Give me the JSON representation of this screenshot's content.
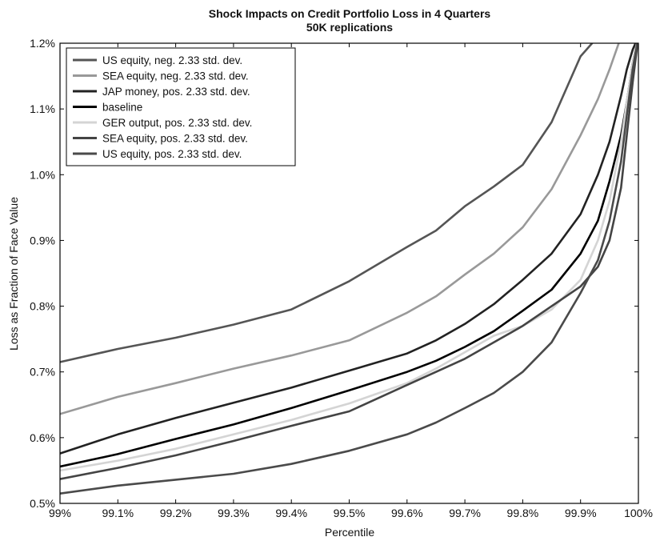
{
  "chart_data": {
    "type": "line",
    "title": "Shock Impacts on Credit Portfolio Loss in 4 Quarters",
    "subtitle": "50K replications",
    "xlabel": "Percentile",
    "ylabel": "Loss as Fraction of Face Value",
    "xlim": [
      99.0,
      100.0
    ],
    "ylim": [
      0.5,
      1.2
    ],
    "x_tick_values": [
      99.0,
      99.1,
      99.2,
      99.3,
      99.4,
      99.5,
      99.6,
      99.7,
      99.8,
      99.9,
      100.0
    ],
    "x_tick_labels": [
      "99%",
      "99.1%",
      "99.2%",
      "99.3%",
      "99.4%",
      "99.5%",
      "99.6%",
      "99.7%",
      "99.8%",
      "99.9%",
      "100%"
    ],
    "y_tick_values": [
      0.5,
      0.6,
      0.7,
      0.8,
      0.9,
      1.0,
      1.1,
      1.2
    ],
    "y_tick_labels": [
      "0.5%",
      "0.6%",
      "0.7%",
      "0.8%",
      "0.9%",
      "1.0%",
      "1.1%",
      "1.2%"
    ],
    "grid": false,
    "legend_position": "top-left",
    "x": [
      99.0,
      99.1,
      99.2,
      99.3,
      99.4,
      99.5,
      99.6,
      99.65,
      99.7,
      99.75,
      99.8,
      99.85,
      99.9,
      99.93,
      99.95,
      99.97,
      99.98,
      99.99,
      100.0
    ],
    "series": [
      {
        "name": "US equity, neg. 2.33 std. dev.",
        "color": "#555555",
        "width": 2.6,
        "values": [
          0.715,
          0.735,
          0.752,
          0.772,
          0.795,
          0.838,
          0.89,
          0.915,
          0.952,
          0.982,
          1.015,
          1.08,
          1.18,
          1.21,
          1.21,
          1.21,
          1.21,
          1.21,
          1.21
        ]
      },
      {
        "name": "SEA equity, neg. 2.33 std. dev.",
        "color": "#999999",
        "width": 2.6,
        "values": [
          0.636,
          0.662,
          0.683,
          0.705,
          0.725,
          0.748,
          0.79,
          0.815,
          0.848,
          0.88,
          0.92,
          0.978,
          1.06,
          1.115,
          1.16,
          1.21,
          1.21,
          1.21,
          1.21
        ]
      },
      {
        "name": "JAP money, pos. 2.33 std. dev.",
        "color": "#222222",
        "width": 2.6,
        "values": [
          0.576,
          0.605,
          0.63,
          0.653,
          0.676,
          0.702,
          0.728,
          0.748,
          0.773,
          0.803,
          0.84,
          0.88,
          0.94,
          1.0,
          1.05,
          1.12,
          1.16,
          1.19,
          1.21
        ]
      },
      {
        "name": "baseline",
        "color": "#000000",
        "width": 2.6,
        "values": [
          0.556,
          0.575,
          0.598,
          0.62,
          0.645,
          0.672,
          0.7,
          0.717,
          0.738,
          0.762,
          0.793,
          0.825,
          0.88,
          0.93,
          0.99,
          1.06,
          1.11,
          1.17,
          1.21
        ]
      },
      {
        "name": "GER output, pos. 2.33 std. dev.",
        "color": "#d4d4d4",
        "width": 2.6,
        "values": [
          0.55,
          0.565,
          0.583,
          0.605,
          0.627,
          0.652,
          0.683,
          0.705,
          0.73,
          0.755,
          0.77,
          0.795,
          0.84,
          0.9,
          0.96,
          1.05,
          1.11,
          1.17,
          1.21
        ]
      },
      {
        "name": "SEA equity, pos. 2.33 std. dev.",
        "color": "#444444",
        "width": 2.6,
        "values": [
          0.537,
          0.554,
          0.573,
          0.595,
          0.618,
          0.64,
          0.68,
          0.7,
          0.72,
          0.745,
          0.77,
          0.8,
          0.83,
          0.86,
          0.9,
          0.98,
          1.06,
          1.14,
          1.21
        ]
      },
      {
        "name": "US equity, pos. 2.33 std. dev.",
        "color": "#4a4a4a",
        "width": 2.6,
        "values": [
          0.515,
          0.527,
          0.536,
          0.545,
          0.56,
          0.58,
          0.605,
          0.623,
          0.645,
          0.668,
          0.7,
          0.745,
          0.82,
          0.87,
          0.93,
          1.02,
          1.09,
          1.16,
          1.21
        ]
      }
    ]
  }
}
